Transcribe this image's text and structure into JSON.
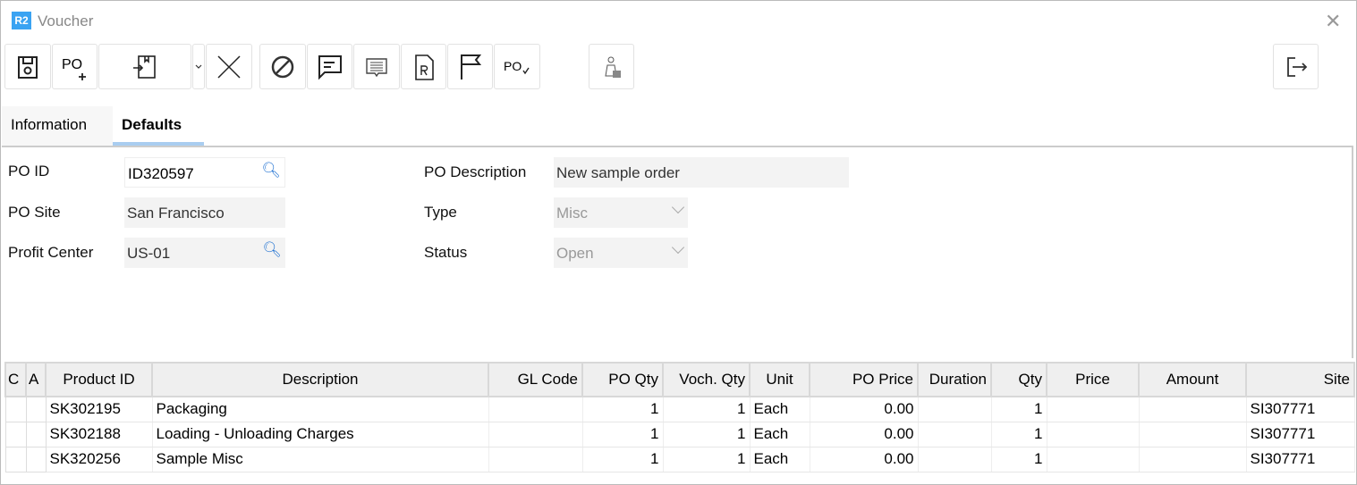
{
  "window": {
    "logo": "R2",
    "title": "Voucher"
  },
  "tabs": [
    {
      "label": "Information",
      "active": false
    },
    {
      "label": "Defaults",
      "active": true
    }
  ],
  "form": {
    "po_id": {
      "label": "PO ID",
      "value": "ID320597"
    },
    "po_site": {
      "label": "PO Site",
      "value": "San Francisco"
    },
    "profit_center": {
      "label": "Profit Center",
      "value": "US-01"
    },
    "po_description": {
      "label": "PO Description",
      "value": "New sample order"
    },
    "type": {
      "label": "Type",
      "value": "Misc"
    },
    "status": {
      "label": "Status",
      "value": "Open"
    }
  },
  "grid": {
    "columns": [
      "C",
      "A",
      "Product ID",
      "Description",
      "GL Code",
      "PO Qty",
      "Voch. Qty",
      "Unit",
      "PO Price",
      "Duration",
      "Qty",
      "Price",
      "Amount",
      "Site"
    ],
    "rows": [
      {
        "product_id": "SK302195",
        "description": "Packaging",
        "gl_code": "",
        "po_qty": "1",
        "voch_qty": "1",
        "unit": "Each",
        "po_price": "0.00",
        "duration": "",
        "qty": "1",
        "price": "",
        "amount": "",
        "site": "SI307771"
      },
      {
        "product_id": "SK302188",
        "description": "Loading - Unloading Charges",
        "gl_code": "",
        "po_qty": "1",
        "voch_qty": "1",
        "unit": "Each",
        "po_price": "0.00",
        "duration": "",
        "qty": "1",
        "price": "",
        "amount": "",
        "site": "SI307771"
      },
      {
        "product_id": "SK320256",
        "description": "Sample Misc",
        "gl_code": "",
        "po_qty": "1",
        "voch_qty": "1",
        "unit": "Each",
        "po_price": "0.00",
        "duration": "",
        "qty": "1",
        "price": "",
        "amount": "",
        "site": "SI307771"
      }
    ]
  },
  "colors": {
    "accent": "#3aa3f2",
    "tab_underline": "#a9cdf0",
    "search_icon": "#1c6fd1"
  }
}
